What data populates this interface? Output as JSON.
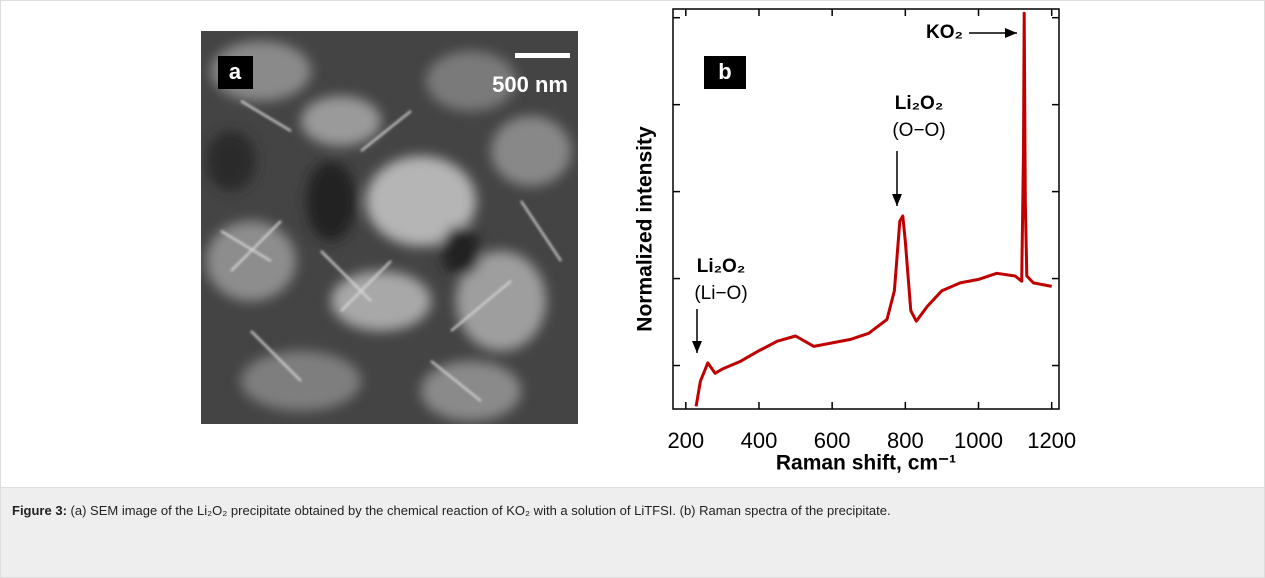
{
  "panel_a": {
    "label": "a",
    "scale_bar": "500 nm"
  },
  "chart_data": {
    "type": "line",
    "panel_label": "b",
    "xlabel": "Raman shift, cm⁻¹",
    "ylabel": "Normalized intensity",
    "x": [
      228,
      240,
      260,
      280,
      300,
      350,
      400,
      450,
      500,
      550,
      600,
      650,
      700,
      750,
      770,
      785,
      793,
      800,
      815,
      830,
      860,
      900,
      950,
      1000,
      1050,
      1100,
      1118,
      1123,
      1125,
      1128,
      1132,
      1150,
      1200
    ],
    "values": [
      0.03,
      0.32,
      0.53,
      0.41,
      0.46,
      0.55,
      0.67,
      0.78,
      0.84,
      0.72,
      0.76,
      0.8,
      0.87,
      1.03,
      1.36,
      2.16,
      2.22,
      1.93,
      1.13,
      1.01,
      1.18,
      1.36,
      1.45,
      1.49,
      1.56,
      1.53,
      1.47,
      2.97,
      4.55,
      2.39,
      1.53,
      1.45,
      1.41
    ],
    "color": "#c00000",
    "xlim": [
      165,
      1220
    ],
    "xticks": [
      200,
      400,
      600,
      800,
      1000,
      1200
    ],
    "ylim": [
      0,
      4.6
    ],
    "yticks": [
      0.5,
      1.5,
      2.5,
      3.5,
      4.5
    ],
    "annotations": [
      {
        "text": "KO₂"
      },
      {
        "text": "Li₂O₂",
        "subtext": "(O−O)"
      },
      {
        "text": "Li₂O₂",
        "subtext": "(Li−O)"
      }
    ]
  },
  "caption": {
    "label": "Figure 3:",
    "text": "(a) SEM image of the Li₂O₂ precipitate obtained by the chemical reaction of KO₂ with a solution of LiTFSI. (b) Raman spectra of the precipitate."
  }
}
